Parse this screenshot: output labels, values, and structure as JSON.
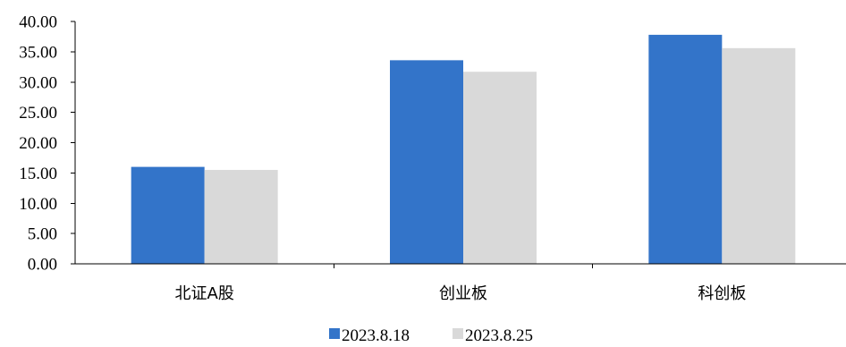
{
  "chart_data": {
    "type": "bar",
    "categories": [
      "北证A股",
      "创业板",
      "科创板"
    ],
    "series": [
      {
        "name": "2023.8.18",
        "color": "#3374C9",
        "values": [
          16.0,
          33.6,
          37.8
        ]
      },
      {
        "name": "2023.8.25",
        "color": "#D9D9D9",
        "values": [
          15.5,
          31.7,
          35.6
        ]
      }
    ],
    "ylim": [
      0,
      40
    ],
    "yticks": [
      "0.00",
      "5.00",
      "10.00",
      "15.00",
      "20.00",
      "25.00",
      "30.00",
      "35.00",
      "40.00"
    ],
    "grid": false,
    "legend_position": "bottom-center"
  }
}
